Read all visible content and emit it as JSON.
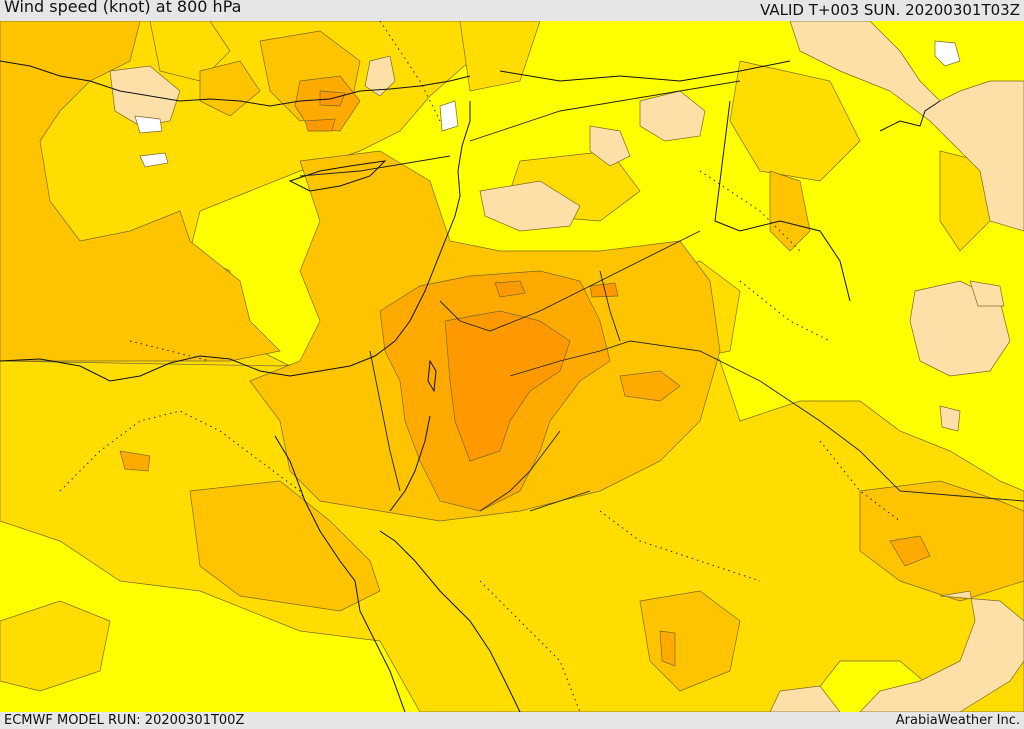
{
  "header": {
    "title": "Wind speed (knot) at 800 hPa",
    "valid": "VALID T+003 SUN. 20200301T03Z"
  },
  "footer": {
    "model_run": "ECMWF MODEL RUN: 20200301T00Z",
    "credit": "ArabiaWeather Inc."
  },
  "colors": {
    "background": "#ffff00",
    "band_gold": "#ffdd00",
    "band_orange_light": "#ffc400",
    "band_orange": "#ffaa00",
    "band_orange_dark": "#ff9900",
    "band_peach": "#fde0a8",
    "band_white": "#ffffff",
    "coast": "#111111",
    "border": "#222222",
    "contour": "#7a6a2a"
  }
}
